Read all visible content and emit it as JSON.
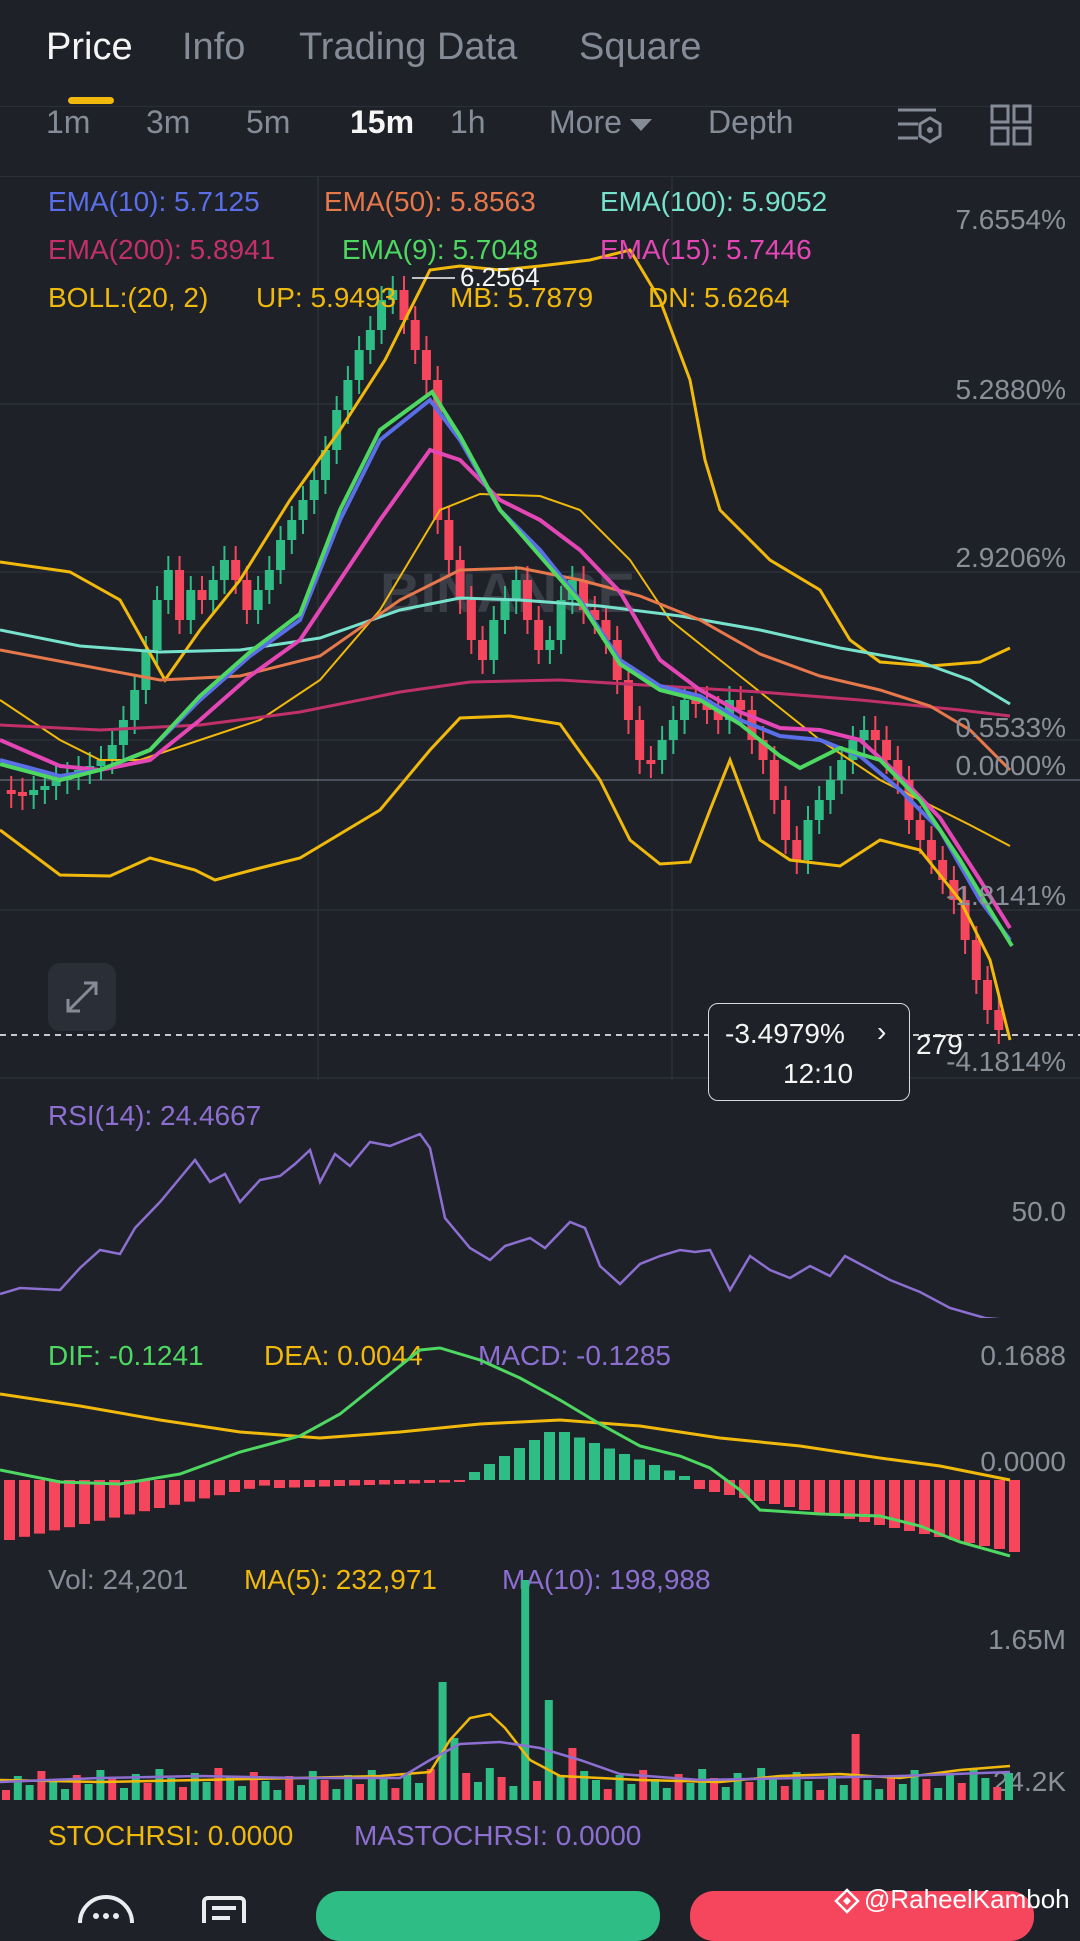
{
  "tabs": [
    {
      "label": "Price",
      "active": true
    },
    {
      "label": "Info",
      "active": false
    },
    {
      "label": "Trading Data",
      "active": false
    },
    {
      "label": "Square",
      "active": false
    }
  ],
  "intervals": [
    {
      "label": "1m",
      "active": false
    },
    {
      "label": "3m",
      "active": false
    },
    {
      "label": "5m",
      "active": false
    },
    {
      "label": "15m",
      "active": true
    },
    {
      "label": "1h",
      "active": false
    },
    {
      "label": "More",
      "active": false
    },
    {
      "label": "Depth",
      "active": false
    }
  ],
  "toolbar_icons": [
    "chart-settings-icon",
    "layout-grid-icon"
  ],
  "indicators": {
    "ema10": "EMA(10): 5.7125",
    "ema50": "EMA(50): 5.8563",
    "ema100": "EMA(100): 5.9052",
    "ema200": "EMA(200): 5.8941",
    "ema9": "EMA(9): 5.7048",
    "ema15": "EMA(15): 5.7446",
    "boll": "BOLL:(20, 2)",
    "boll_up": "UP: 5.9493",
    "boll_mb": "MB: 5.7879",
    "boll_dn": "DN: 5.6264"
  },
  "price_axis": [
    "7.6554%",
    "5.2880%",
    "2.9206%",
    "0.5533%",
    "0.0000%",
    "-1.8141%",
    "-4.1814%"
  ],
  "high_marker": "6.2564",
  "last_price_partial": "279",
  "tooltip": {
    "pct": "-3.4979%",
    "time": "12:10"
  },
  "watermark_logo": "BINANCE",
  "rsi": {
    "label": "RSI(14): 24.4667",
    "axis": "50.0"
  },
  "macd": {
    "dif": "DIF: -0.1241",
    "dea": "DEA: 0.0044",
    "macd": "MACD: -0.1285",
    "axis_top": "0.1688",
    "axis_zero": "0.0000"
  },
  "volume": {
    "vol": "Vol: 24,201",
    "ma5": "MA(5): 232,971",
    "ma10": "MA(10): 198,988",
    "axis_top": "1.65M",
    "axis_bottom": "24.2K"
  },
  "stochrsi": {
    "stoch": "STOCHRSI: 0.0000",
    "mastoch": "MASTOCHRSI: 0.0000"
  },
  "credit": "@RaheelKamboh",
  "colors": {
    "up": "#2ebd85",
    "down": "#f6465d",
    "ema10": "#5a6ee8",
    "ema50": "#e6784c",
    "ema100": "#77e2cc",
    "ema200": "#c2306a",
    "ema9": "#4ed862",
    "ema15": "#e447b5",
    "boll": "#f0b90b",
    "rsi": "#8d6fd1"
  }
}
